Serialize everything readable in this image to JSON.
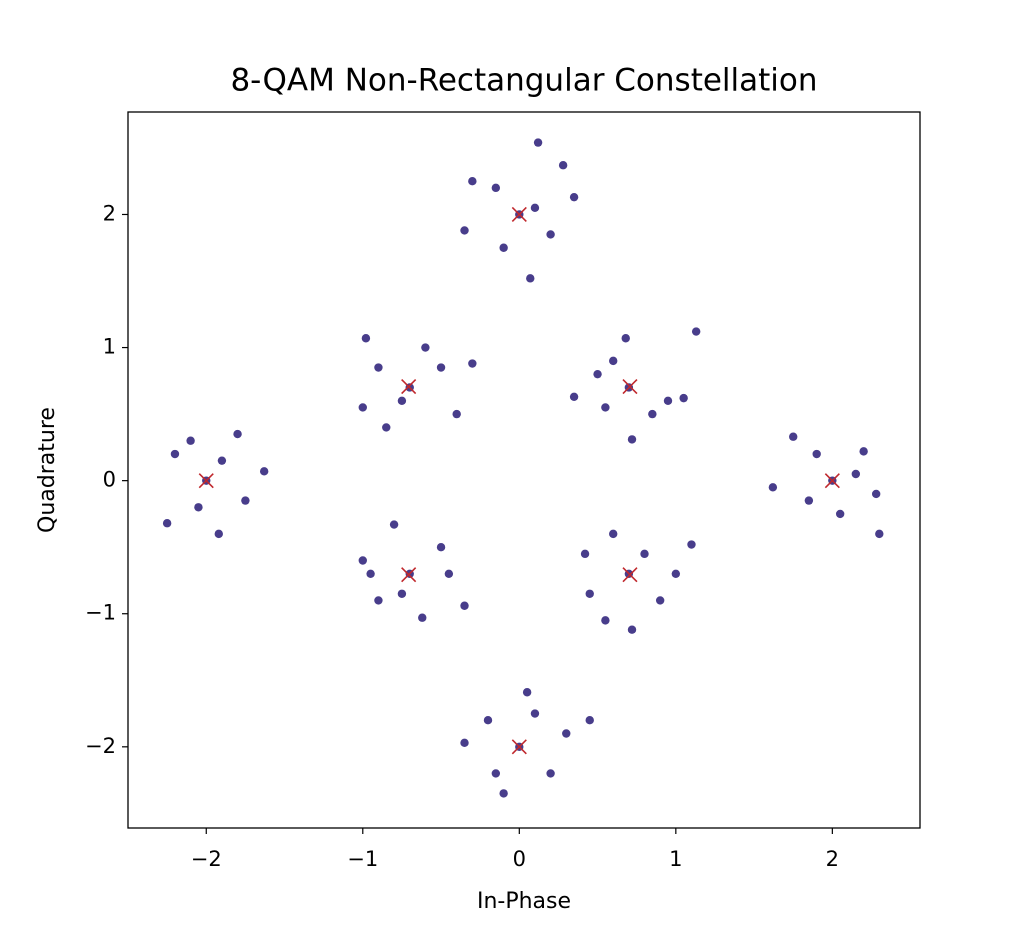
{
  "chart_data": {
    "type": "scatter",
    "title": "8-QAM Non-Rectangular Constellation",
    "x_label": "In-Phase",
    "y_label": "Quadrature",
    "xlim": [
      -2.5,
      2.56
    ],
    "ylim": [
      -2.61,
      2.77
    ],
    "xticks": [
      {
        "value": -2,
        "label": "−2"
      },
      {
        "value": -1,
        "label": "−1"
      },
      0,
      1,
      2
    ],
    "yticks": [
      {
        "value": -2,
        "label": "−2"
      },
      {
        "value": -1,
        "label": "−1"
      },
      0,
      1,
      2
    ],
    "grid": false,
    "series": [
      {
        "color": "#483d8b",
        "marker": "dot",
        "x": [
          0,
          0.12,
          0.07,
          -0.15,
          0.2,
          -0.35,
          0.35,
          -0.1,
          0.28,
          -0.3,
          0.1,
          0,
          -0.1,
          0.05,
          0.3,
          -0.35,
          0.2,
          -0.2,
          0.45,
          -0.15,
          0.1,
          2,
          2.3,
          1.62,
          1.75,
          2.2,
          2.05,
          1.85,
          2.28,
          1.9,
          2.15,
          -2,
          -1.92,
          -2.25,
          -1.63,
          -1.8,
          -2.2,
          -2.05,
          -1.75,
          -1.9,
          -2.1,
          0.7,
          1.13,
          0.35,
          0.95,
          0.6,
          0.72,
          0.5,
          0.85,
          0.68,
          1.05,
          0.55,
          -0.7,
          -1.0,
          -0.4,
          -0.98,
          -0.5,
          -0.85,
          -0.6,
          -0.3,
          -0.75,
          -0.9,
          0.7,
          0.72,
          0.42,
          1.1,
          0.9,
          0.55,
          0.6,
          1.0,
          0.8,
          0.45,
          -0.7,
          -0.62,
          -0.8,
          -0.35,
          -1.0,
          -0.5,
          -0.9,
          -0.75,
          -0.45,
          -0.95
        ],
        "y": [
          2,
          2.54,
          1.52,
          2.2,
          1.85,
          1.88,
          2.13,
          1.75,
          2.37,
          2.25,
          2.05,
          -2,
          -2.35,
          -1.59,
          -1.9,
          -1.97,
          -2.2,
          -1.8,
          -1.8,
          -2.2,
          -1.75,
          0,
          -0.4,
          -0.05,
          0.33,
          0.22,
          -0.25,
          -0.15,
          -0.1,
          0.2,
          0.05,
          0,
          -0.4,
          -0.32,
          0.07,
          0.35,
          0.2,
          -0.2,
          -0.15,
          0.15,
          0.3,
          0.7,
          1.12,
          0.63,
          0.6,
          0.9,
          0.31,
          0.8,
          0.5,
          1.07,
          0.62,
          0.55,
          0.7,
          0.55,
          0.5,
          1.07,
          0.85,
          0.4,
          1.0,
          0.88,
          0.6,
          0.85,
          -0.7,
          -1.12,
          -0.55,
          -0.48,
          -0.9,
          -1.05,
          -0.4,
          -0.7,
          -0.55,
          -0.85,
          -0.7,
          -1.03,
          -0.33,
          -0.94,
          -0.6,
          -0.5,
          -0.9,
          -0.85,
          -0.7,
          -0.7
        ]
      },
      {
        "color": "#c0282d",
        "marker": "x",
        "x": [
          2,
          0.707,
          0,
          -0.707,
          -2,
          -0.707,
          0,
          0.707
        ],
        "y": [
          0,
          0.707,
          2,
          0.707,
          0,
          -0.707,
          -2,
          -0.707
        ]
      }
    ]
  }
}
